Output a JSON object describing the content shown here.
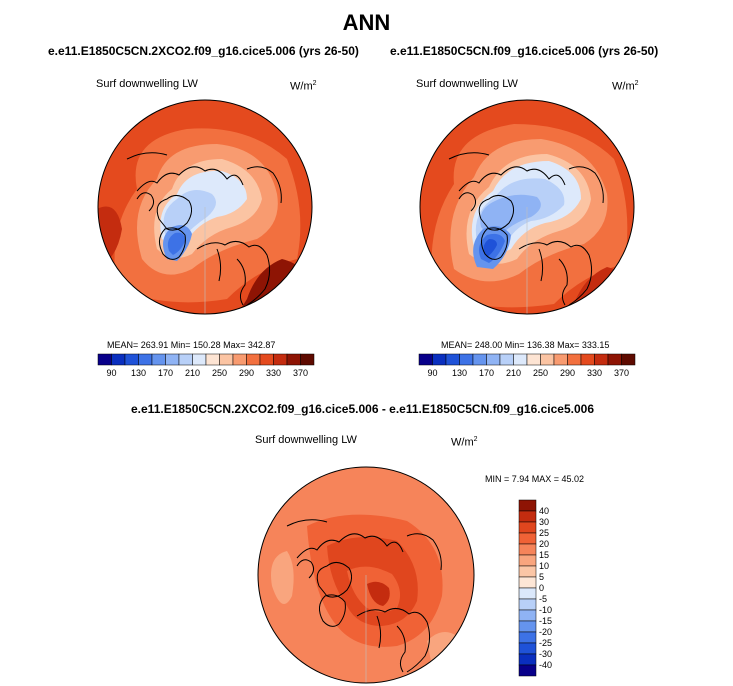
{
  "figure": {
    "title": "ANN",
    "variable": "Surf downwelling LW",
    "units_base": "W/m",
    "units_exp": "2"
  },
  "chart_data": [
    {
      "type": "heatmap",
      "projection": "north-polar-stereographic",
      "title": "e.e11.E1850C5CN.2XCO2.f09_g16.cice5.006 (yrs 26-50)",
      "variable": "Surf downwelling LW",
      "units": "W/m2",
      "stats": {
        "mean": "263.91",
        "min": "150.28",
        "max": "342.87"
      },
      "stats_text": "MEAN= 263.91   Min= 150.28   Max= 342.87",
      "colorbar": {
        "orientation": "horizontal",
        "levels": [
          90,
          110,
          130,
          150,
          170,
          190,
          210,
          230,
          250,
          270,
          290,
          310,
          330,
          350,
          370
        ],
        "tick_labels": [
          "90",
          "130",
          "170",
          "210",
          "250",
          "290",
          "330",
          "370"
        ],
        "colors": [
          "#08008a",
          "#0a2fbf",
          "#1f52d8",
          "#3d72e6",
          "#6594ee",
          "#8fb3f4",
          "#b8d0f8",
          "#dde9fb",
          "#fde4d3",
          "#fbc4a3",
          "#f89b70",
          "#f2703f",
          "#e44a1e",
          "#c42c0f",
          "#8e1404",
          "#5e0a00"
        ]
      }
    },
    {
      "type": "heatmap",
      "projection": "north-polar-stereographic",
      "title": "e.e11.E1850C5CN.f09_g16.cice5.006 (yrs 26-50)",
      "variable": "Surf downwelling LW",
      "units": "W/m2",
      "stats": {
        "mean": "248.00",
        "min": "136.38",
        "max": "333.15"
      },
      "stats_text": "MEAN= 248.00   Min= 136.38   Max= 333.15",
      "colorbar": {
        "orientation": "horizontal",
        "levels": [
          90,
          110,
          130,
          150,
          170,
          190,
          210,
          230,
          250,
          270,
          290,
          310,
          330,
          350,
          370
        ],
        "tick_labels": [
          "90",
          "130",
          "170",
          "210",
          "250",
          "290",
          "330",
          "370"
        ],
        "colors": [
          "#08008a",
          "#0a2fbf",
          "#1f52d8",
          "#3d72e6",
          "#6594ee",
          "#8fb3f4",
          "#b8d0f8",
          "#dde9fb",
          "#fde4d3",
          "#fbc4a3",
          "#f89b70",
          "#f2703f",
          "#e44a1e",
          "#c42c0f",
          "#8e1404",
          "#5e0a00"
        ]
      }
    },
    {
      "type": "heatmap",
      "projection": "north-polar-stereographic",
      "title": "e.e11.E1850C5CN.2XCO2.f09_g16.cice5.006 - e.e11.E1850C5CN.f09_g16.cice5.006",
      "variable": "Surf downwelling LW",
      "units": "W/m2",
      "stats": {
        "min": "7.94",
        "max": "45.02"
      },
      "stats_text": "MIN =   7.94 MAX =  45.02",
      "colorbar": {
        "orientation": "vertical",
        "levels": [
          40,
          30,
          25,
          20,
          15,
          10,
          5,
          0,
          -5,
          -10,
          -15,
          -20,
          -25,
          -30,
          -40
        ],
        "tick_labels": [
          "40",
          "30",
          "25",
          "20",
          "15",
          "10",
          "5",
          "0",
          "-5",
          "-10",
          "-15",
          "-20",
          "-25",
          "-30",
          "-40"
        ],
        "colors": [
          "#8e1404",
          "#c42c0f",
          "#e0461e",
          "#f06236",
          "#f6845a",
          "#f9a57e",
          "#fbc6a6",
          "#fde6d6",
          "#dbe8fb",
          "#b8d0f8",
          "#8fb3f4",
          "#6594ee",
          "#3d72e6",
          "#1f52d8",
          "#0a2fbf",
          "#08008a"
        ]
      }
    }
  ]
}
